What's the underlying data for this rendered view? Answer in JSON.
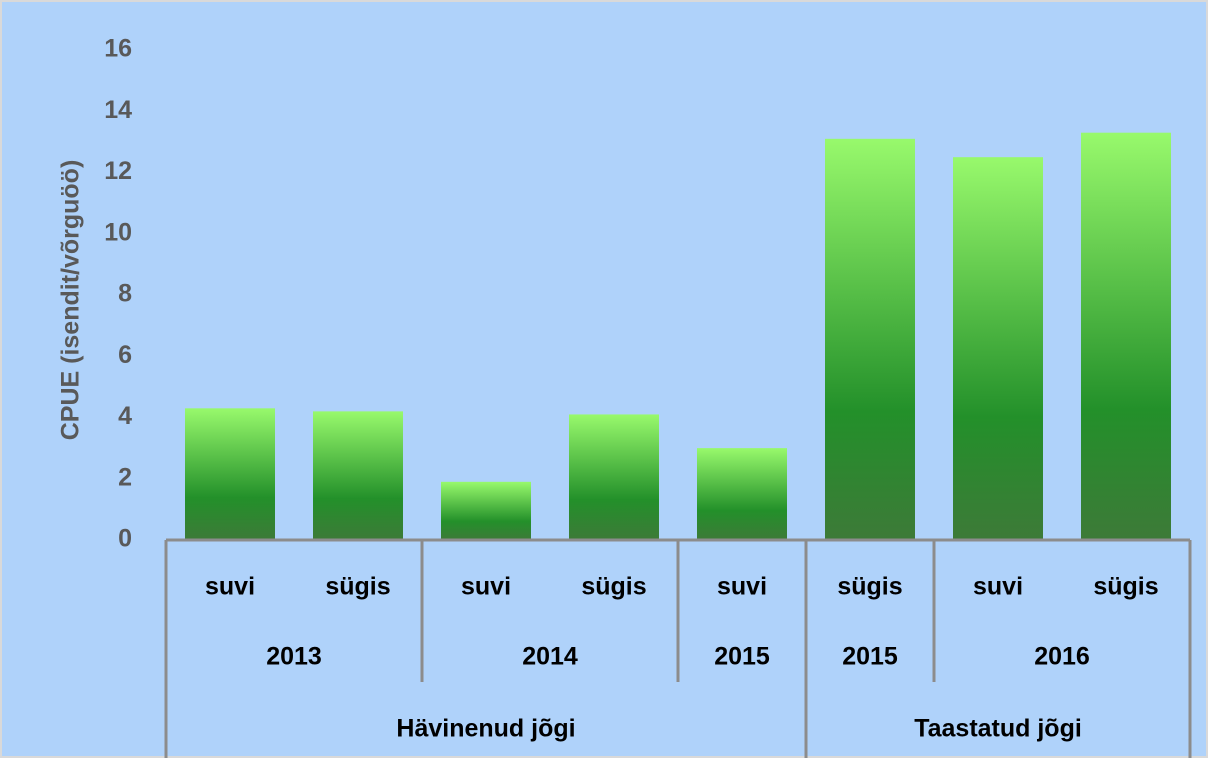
{
  "chart_data": {
    "type": "bar",
    "y_label": "CPUE (isendit/võrguöö)",
    "categories": [
      "suvi",
      "sügis",
      "suvi",
      "sügis",
      "suvi",
      "sügis",
      "suvi",
      "sügis"
    ],
    "years": [
      "2013",
      null,
      "2014",
      null,
      "2015",
      "2015",
      "2016",
      null
    ],
    "rivers": [
      "Hävinenud jõgi",
      null,
      null,
      null,
      null,
      "Taastatud jõgi",
      null,
      null
    ],
    "values": [
      4.3,
      4.2,
      1.9,
      4.1,
      3.0,
      13.1,
      12.5,
      13.3
    ],
    "color_top": "#98f96c",
    "color_mid": "#23902a",
    "color_bottom": "#3d7a38",
    "ylim": [
      0,
      16
    ],
    "yticks": [
      0,
      2,
      4,
      6,
      8,
      10,
      12,
      14,
      16
    ],
    "grid": false
  }
}
